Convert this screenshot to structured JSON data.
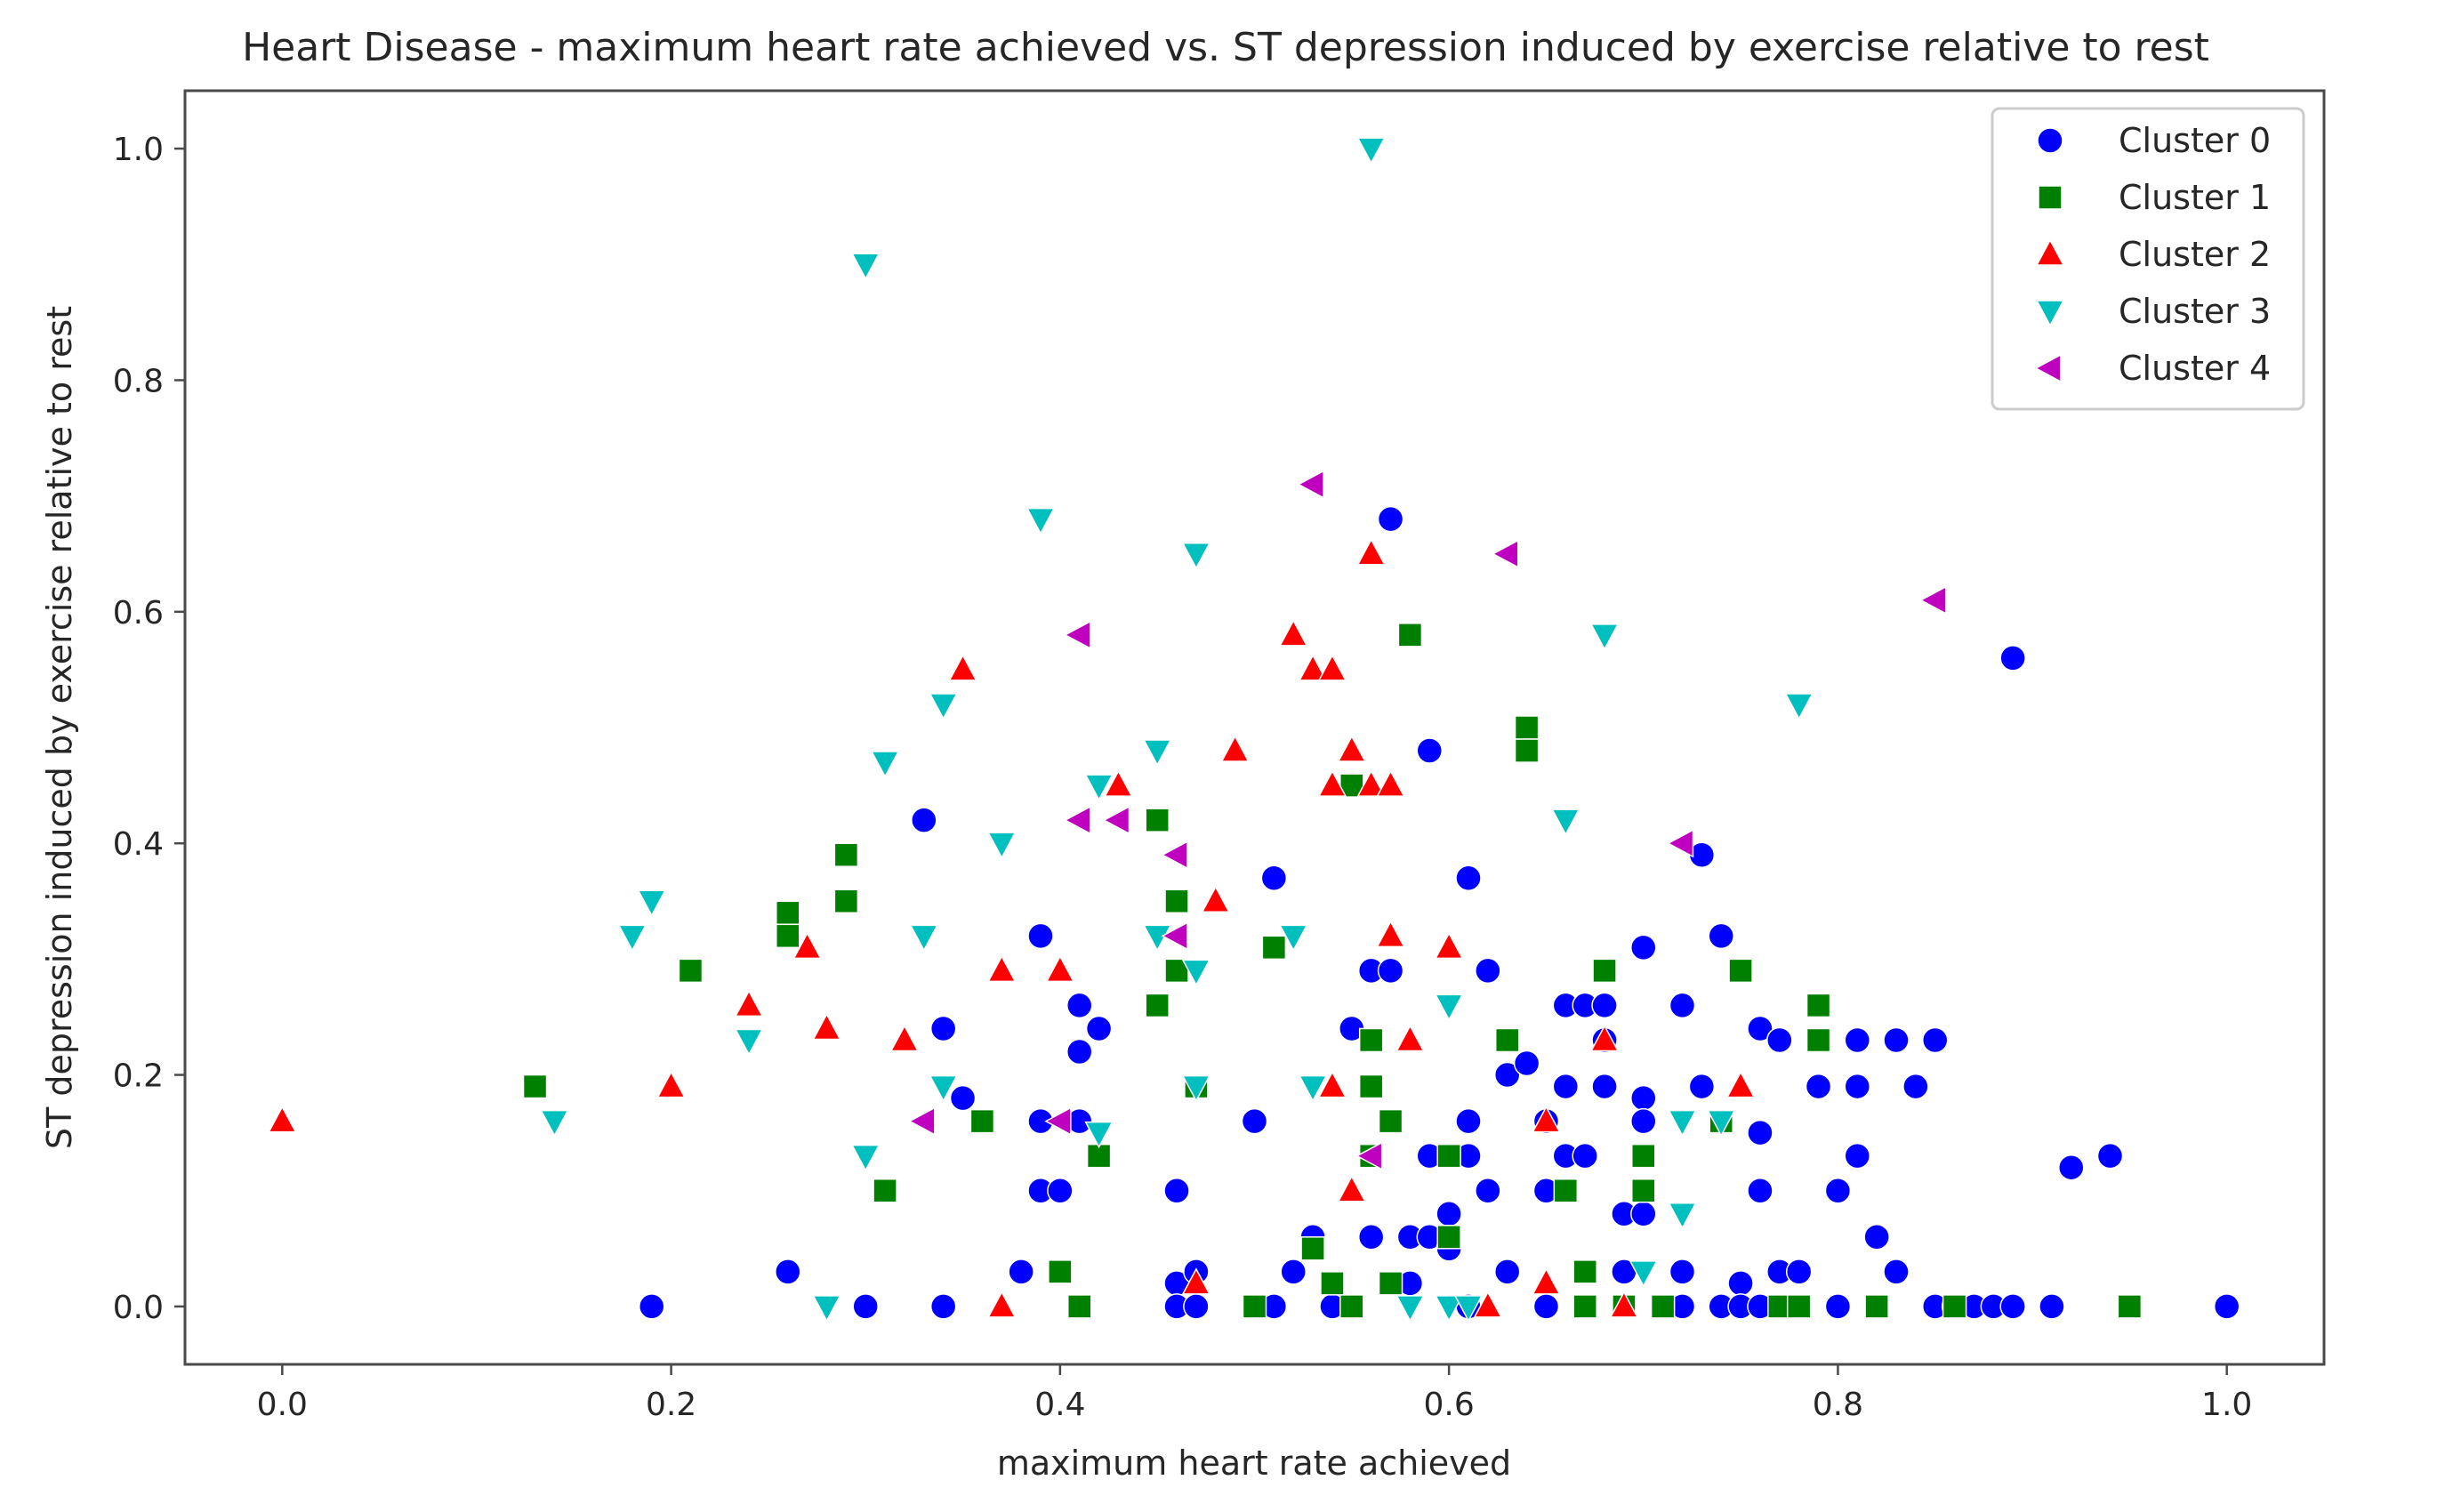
{
  "chart_data": {
    "type": "scatter",
    "title": "Heart Disease - maximum heart rate achieved vs. ST depression induced by exercise relative to rest",
    "xlabel": "maximum heart rate achieved",
    "ylabel": "ST depression induced by exercise relative to rest",
    "xlim": [
      -0.05,
      1.05
    ],
    "ylim": [
      -0.05,
      1.05
    ],
    "xticks": [
      0.0,
      0.2,
      0.4,
      0.6,
      0.8,
      1.0
    ],
    "yticks": [
      0.0,
      0.2,
      0.4,
      0.6,
      0.8,
      1.0
    ],
    "xtick_labels": [
      "0.0",
      "0.2",
      "0.4",
      "0.6",
      "0.8",
      "1.0"
    ],
    "ytick_labels": [
      "0.0",
      "0.2",
      "0.4",
      "0.6",
      "0.8",
      "1.0"
    ],
    "grid": false,
    "legend_position": "top-right",
    "series": [
      {
        "name": "Cluster 0",
        "marker": "circle",
        "color": "#0000ff",
        "x": [
          0.19,
          0.26,
          0.3,
          0.33,
          0.34,
          0.34,
          0.35,
          0.38,
          0.39,
          0.39,
          0.39,
          0.4,
          0.41,
          0.41,
          0.41,
          0.42,
          0.46,
          0.46,
          0.46,
          0.47,
          0.47,
          0.5,
          0.51,
          0.51,
          0.52,
          0.53,
          0.54,
          0.55,
          0.56,
          0.56,
          0.57,
          0.57,
          0.58,
          0.58,
          0.59,
          0.59,
          0.59,
          0.6,
          0.6,
          0.61,
          0.61,
          0.61,
          0.61,
          0.62,
          0.62,
          0.63,
          0.63,
          0.64,
          0.65,
          0.65,
          0.65,
          0.66,
          0.66,
          0.66,
          0.67,
          0.67,
          0.68,
          0.68,
          0.68,
          0.69,
          0.69,
          0.7,
          0.7,
          0.7,
          0.7,
          0.71,
          0.72,
          0.72,
          0.72,
          0.73,
          0.73,
          0.74,
          0.74,
          0.75,
          0.75,
          0.76,
          0.76,
          0.76,
          0.76,
          0.77,
          0.77,
          0.78,
          0.78,
          0.79,
          0.79,
          0.8,
          0.8,
          0.81,
          0.81,
          0.81,
          0.82,
          0.82,
          0.83,
          0.83,
          0.84,
          0.85,
          0.85,
          0.86,
          0.87,
          0.88,
          0.89,
          0.89,
          0.91,
          0.92,
          0.94,
          1.0
        ],
        "y": [
          0.0,
          0.03,
          0.0,
          0.42,
          0.24,
          0.0,
          0.18,
          0.03,
          0.32,
          0.16,
          0.1,
          0.1,
          0.26,
          0.22,
          0.16,
          0.24,
          0.1,
          0.02,
          0.0,
          0.0,
          0.03,
          0.16,
          0.37,
          0.0,
          0.03,
          0.06,
          0.0,
          0.24,
          0.29,
          0.06,
          0.68,
          0.29,
          0.02,
          0.06,
          0.48,
          0.13,
          0.06,
          0.08,
          0.05,
          0.37,
          0.16,
          0.0,
          0.13,
          0.29,
          0.1,
          0.2,
          0.03,
          0.21,
          0.1,
          0.16,
          0.0,
          0.26,
          0.19,
          0.13,
          0.26,
          0.13,
          0.26,
          0.23,
          0.19,
          0.08,
          0.03,
          0.31,
          0.18,
          0.16,
          0.08,
          0.0,
          0.26,
          0.03,
          0.0,
          0.39,
          0.19,
          0.0,
          0.32,
          0.02,
          0.0,
          0.24,
          0.15,
          0.1,
          0.0,
          0.23,
          0.03,
          0.03,
          0.0,
          0.26,
          0.19,
          0.1,
          0.0,
          0.19,
          0.13,
          0.23,
          0.06,
          0.0,
          0.23,
          0.03,
          0.19,
          0.23,
          0.0,
          0.0,
          0.0,
          0.0,
          0.56,
          0.0,
          0.0,
          0.12,
          0.13,
          0.0
        ]
      },
      {
        "name": "Cluster 1",
        "marker": "square",
        "color": "#008000",
        "x": [
          0.13,
          0.21,
          0.26,
          0.26,
          0.29,
          0.29,
          0.31,
          0.36,
          0.4,
          0.41,
          0.42,
          0.45,
          0.45,
          0.46,
          0.46,
          0.47,
          0.47,
          0.5,
          0.51,
          0.53,
          0.54,
          0.55,
          0.55,
          0.56,
          0.56,
          0.56,
          0.57,
          0.57,
          0.58,
          0.6,
          0.6,
          0.64,
          0.64,
          0.63,
          0.66,
          0.67,
          0.68,
          0.67,
          0.69,
          0.7,
          0.7,
          0.71,
          0.74,
          0.75,
          0.77,
          0.78,
          0.79,
          0.79,
          0.82,
          0.86,
          0.95
        ],
        "y": [
          0.19,
          0.29,
          0.34,
          0.32,
          0.39,
          0.35,
          0.1,
          0.16,
          0.03,
          0.0,
          0.13,
          0.42,
          0.26,
          0.29,
          0.35,
          0.19,
          0.19,
          0.0,
          0.31,
          0.05,
          0.02,
          0.0,
          0.45,
          0.19,
          0.23,
          0.13,
          0.02,
          0.16,
          0.58,
          0.13,
          0.06,
          0.5,
          0.48,
          0.23,
          0.1,
          0.03,
          0.29,
          0.0,
          0.0,
          0.13,
          0.1,
          0.0,
          0.16,
          0.29,
          0.0,
          0.0,
          0.26,
          0.23,
          0.0,
          0.0,
          0.0
        ]
      },
      {
        "name": "Cluster 2",
        "marker": "triangle-up",
        "color": "#ff0000",
        "x": [
          0.0,
          0.2,
          0.24,
          0.27,
          0.28,
          0.32,
          0.35,
          0.37,
          0.37,
          0.4,
          0.43,
          0.47,
          0.48,
          0.49,
          0.52,
          0.53,
          0.54,
          0.54,
          0.54,
          0.55,
          0.55,
          0.56,
          0.56,
          0.57,
          0.57,
          0.58,
          0.6,
          0.62,
          0.65,
          0.65,
          0.68,
          0.69,
          0.75
        ],
        "y": [
          0.16,
          0.19,
          0.26,
          0.31,
          0.24,
          0.23,
          0.55,
          0.29,
          0.0,
          0.29,
          0.45,
          0.02,
          0.35,
          0.48,
          0.58,
          0.55,
          0.55,
          0.19,
          0.45,
          0.1,
          0.48,
          0.65,
          0.45,
          0.32,
          0.45,
          0.23,
          0.31,
          0.0,
          0.16,
          0.02,
          0.23,
          0.0,
          0.19
        ]
      },
      {
        "name": "Cluster 3",
        "marker": "triangle-down",
        "color": "#00bfbf",
        "x": [
          0.14,
          0.18,
          0.19,
          0.24,
          0.28,
          0.3,
          0.3,
          0.31,
          0.33,
          0.34,
          0.34,
          0.37,
          0.39,
          0.42,
          0.42,
          0.45,
          0.45,
          0.47,
          0.47,
          0.47,
          0.52,
          0.53,
          0.56,
          0.58,
          0.6,
          0.6,
          0.61,
          0.66,
          0.68,
          0.7,
          0.72,
          0.72,
          0.74,
          0.78
        ],
        "y": [
          0.16,
          0.32,
          0.35,
          0.23,
          0.0,
          0.13,
          0.9,
          0.47,
          0.32,
          0.52,
          0.19,
          0.4,
          0.68,
          0.45,
          0.15,
          0.32,
          0.48,
          0.65,
          0.29,
          0.19,
          0.32,
          0.19,
          1.0,
          0.0,
          0.26,
          0.0,
          0.0,
          0.42,
          0.58,
          0.03,
          0.16,
          0.08,
          0.16,
          0.52
        ]
      },
      {
        "name": "Cluster 4",
        "marker": "triangle-left",
        "color": "#bf00bf",
        "x": [
          0.33,
          0.4,
          0.41,
          0.41,
          0.43,
          0.46,
          0.46,
          0.53,
          0.56,
          0.63,
          0.72,
          0.85
        ],
        "y": [
          0.16,
          0.16,
          0.58,
          0.42,
          0.42,
          0.39,
          0.32,
          0.71,
          0.13,
          0.65,
          0.4,
          0.61
        ]
      }
    ]
  }
}
